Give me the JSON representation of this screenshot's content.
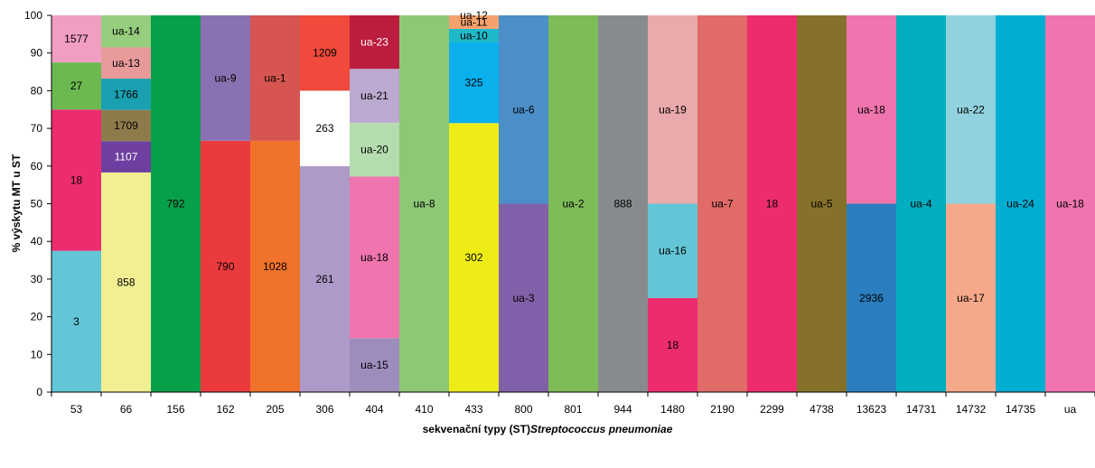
{
  "chart_data": {
    "type": "bar",
    "stacked": true,
    "xlabel": "sekvenační typy (ST)",
    "xlabel_italic": "Streptococcus pneumoniae",
    "ylabel": "% výskytu MT u ST",
    "ylim": [
      0,
      100
    ],
    "yticks": [
      0,
      10,
      20,
      30,
      40,
      50,
      60,
      70,
      80,
      90,
      100
    ],
    "grid": false,
    "legend": "none",
    "categories": [
      "53",
      "66",
      "156",
      "162",
      "205",
      "306",
      "404",
      "410",
      "433",
      "800",
      "801",
      "944",
      "1480",
      "2190",
      "2299",
      "4738",
      "13623",
      "14731",
      "14732",
      "14735",
      "ua"
    ],
    "stacks": [
      [
        {
          "label": "3",
          "value": 37.5,
          "color": "#62c6d6"
        },
        {
          "label": "18",
          "value": 37.5,
          "color": "#ec2c6f"
        },
        {
          "label": "27",
          "value": 12.5,
          "color": "#6bb94f"
        },
        {
          "label": "1577",
          "value": 12.5,
          "color": "#f29dc2"
        }
      ],
      [
        {
          "label": "858",
          "value": 58.3,
          "color": "#f2ef93"
        },
        {
          "label": "1107",
          "value": 8.3,
          "color": "#6e3fa0"
        },
        {
          "label": "1709",
          "value": 8.3,
          "color": "#8e7b4c"
        },
        {
          "label": "1766",
          "value": 8.3,
          "color": "#1aa0b0"
        },
        {
          "label": "ua-13",
          "value": 8.3,
          "color": "#e89a9a"
        },
        {
          "label": "ua-14",
          "value": 8.5,
          "color": "#96cd7e"
        }
      ],
      [
        {
          "label": "792",
          "value": 100,
          "color": "#06a04b"
        }
      ],
      [
        {
          "label": "790",
          "value": 66.7,
          "color": "#eb3a3e"
        },
        {
          "label": "ua-9",
          "value": 33.3,
          "color": "#8a72b2"
        }
      ],
      [
        {
          "label": "1028",
          "value": 66.7,
          "color": "#f1722b"
        },
        {
          "label": "ua-1",
          "value": 33.3,
          "color": "#d75550"
        }
      ],
      [
        {
          "label": "261",
          "value": 60,
          "color": "#ad9ac8"
        },
        {
          "label": "263",
          "value": 20,
          "color": "#ffffff"
        },
        {
          "label": "1209",
          "value": 20,
          "color": "#ef4a3b"
        }
      ],
      [
        {
          "label": "ua-15",
          "value": 14.3,
          "color": "#9d8dbd"
        },
        {
          "label": "ua-18",
          "value": 42.9,
          "color": "#f074ad"
        },
        {
          "label": "ua-20",
          "value": 14.3,
          "color": "#b5dcae"
        },
        {
          "label": "ua-21",
          "value": 14.3,
          "color": "#bba9cf"
        },
        {
          "label": "ua-23",
          "value": 14.2,
          "color": "#bb1d3e"
        }
      ],
      [
        {
          "label": "ua-8",
          "value": 100,
          "color": "#8dc877"
        }
      ],
      [
        {
          "label": "302",
          "value": 71.4,
          "color": "#eeeb17"
        },
        {
          "label": "325",
          "value": 21.4,
          "color": "#0ab0ec"
        },
        {
          "label": "ua-10",
          "value": 3.6,
          "color": "#1eb9c9"
        },
        {
          "label": "ua-11",
          "value": 3.6,
          "color": "#f6a26e"
        },
        {
          "label": "ua-12",
          "value": 0,
          "color": "#7ea3d3"
        }
      ],
      [
        {
          "label": "ua-3",
          "value": 50,
          "color": "#8060a8"
        },
        {
          "label": "ua-6",
          "value": 50,
          "color": "#4b8ec8"
        }
      ],
      [
        {
          "label": "ua-2",
          "value": 100,
          "color": "#7dbc57"
        }
      ],
      [
        {
          "label": "888",
          "value": 100,
          "color": "#888b8d"
        }
      ],
      [
        {
          "label": "18",
          "value": 25,
          "color": "#ec2c6f"
        },
        {
          "label": "ua-16",
          "value": 25,
          "color": "#62c6d6"
        },
        {
          "label": "ua-19",
          "value": 50,
          "color": "#eaa9ab"
        }
      ],
      [
        {
          "label": "ua-7",
          "value": 100,
          "color": "#e06b67"
        }
      ],
      [
        {
          "label": "18",
          "value": 100,
          "color": "#ec2c6f"
        }
      ],
      [
        {
          "label": "ua-5",
          "value": 100,
          "color": "#857129"
        }
      ],
      [
        {
          "label": "2936",
          "value": 50,
          "color": "#2a7ebf"
        },
        {
          "label": "ua-18",
          "value": 50,
          "color": "#f074ad"
        }
      ],
      [
        {
          "label": "ua-4",
          "value": 100,
          "color": "#00aebf"
        }
      ],
      [
        {
          "label": "ua-17",
          "value": 50,
          "color": "#f6a98a"
        },
        {
          "label": "ua-22",
          "value": 50,
          "color": "#92d2df"
        }
      ],
      [
        {
          "label": "ua-24",
          "value": 100,
          "color": "#00aed1"
        }
      ],
      [
        {
          "label": "ua-18",
          "value": 100,
          "color": "#f074ad"
        }
      ]
    ]
  }
}
